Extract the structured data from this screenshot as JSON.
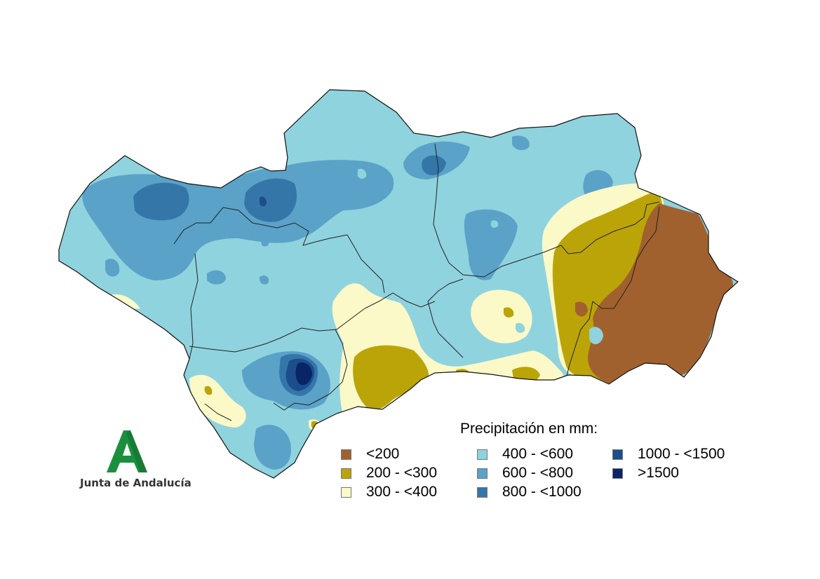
{
  "legend": {
    "title": "Precipitación en mm:",
    "items": [
      {
        "label": "<200",
        "color": "#a0612e"
      },
      {
        "label": "200 - <300",
        "color": "#bba408"
      },
      {
        "label": "300 - <400",
        "color": "#fbf9c8"
      },
      {
        "label": "400 - <600",
        "color": "#8fd3de"
      },
      {
        "label": "600 - <800",
        "color": "#5aa2c8"
      },
      {
        "label": "800 - <1000",
        "color": "#3576a8"
      },
      {
        "label": "1000 - <1500",
        "color": "#1b4e8c"
      },
      {
        "label": ">1500",
        "color": "#0a2566"
      }
    ]
  },
  "logo": {
    "text": "Junta de Andalucía",
    "color": "#1c8f3e"
  }
}
